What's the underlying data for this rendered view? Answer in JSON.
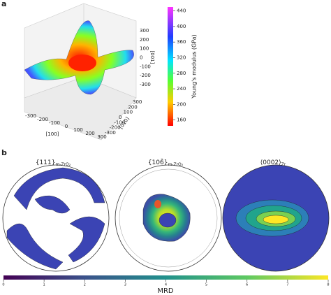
{
  "panel_a": {
    "label": "a",
    "colorbar": {
      "label": "Young's modulus (GPa)",
      "range": [
        145,
        450
      ],
      "ticks": [
        160,
        200,
        240,
        280,
        320,
        360,
        400,
        440
      ]
    },
    "x_axis": {
      "label": "[100]",
      "ticks": [
        -300,
        -200,
        -100,
        0,
        100,
        200,
        300
      ]
    },
    "y_axis": {
      "label": "[010]",
      "ticks": [
        -300,
        -200,
        -100,
        0,
        100,
        200,
        300
      ]
    },
    "z_axis": {
      "label": "[001]",
      "ticks": [
        -300,
        -200,
        -100,
        0,
        100,
        200,
        300
      ]
    }
  },
  "panel_b": {
    "label": "b",
    "titles": [
      {
        "main": "{111}",
        "sub": "m-ZrO₂"
      },
      {
        "main": "{106̄}",
        "sub": "m-ZrO₂"
      },
      {
        "main": "⟨0002⟩",
        "sub": "Zr"
      }
    ],
    "colorbar": {
      "label": "MRD",
      "range": [
        0,
        8
      ],
      "ticks": [
        0,
        1,
        2,
        3,
        4,
        5,
        6,
        7,
        8
      ]
    }
  }
}
